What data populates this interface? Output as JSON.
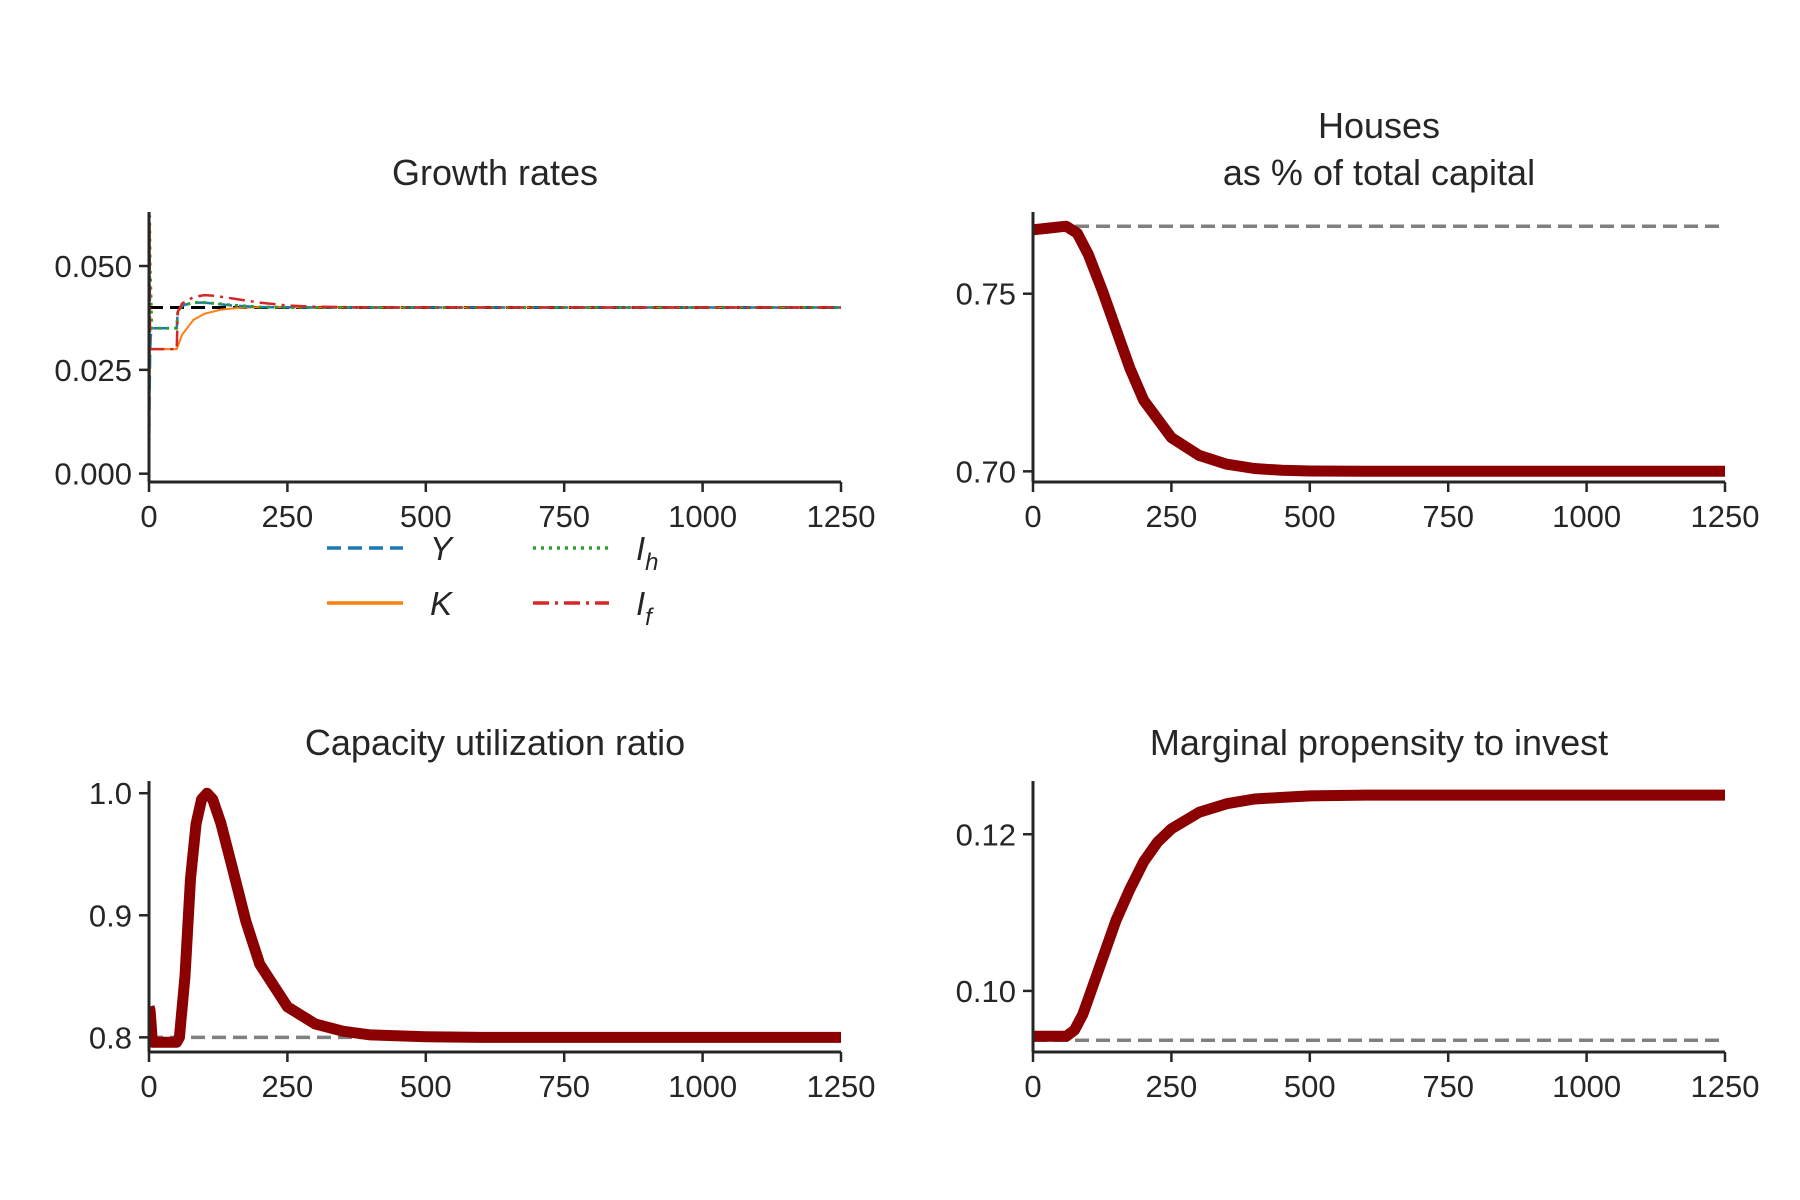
{
  "colors": {
    "background": "#ffffff",
    "axis": "#262626",
    "main_line": "#8b0000",
    "reference_line": "#808080",
    "target_line": "#000000",
    "Y": "#1f77b4",
    "K": "#ff7f0e",
    "Ih": "#2ca02c",
    "If": "#d62728"
  },
  "chart_data": [
    {
      "id": "growth",
      "type": "line",
      "title": "Growth rates",
      "xlabel": "",
      "ylabel": "",
      "xlim": [
        0,
        1250
      ],
      "ylim": [
        -0.002,
        0.063
      ],
      "xticks": [
        0,
        250,
        500,
        750,
        1000,
        1250
      ],
      "yticks": [
        0.0,
        0.025,
        0.05
      ],
      "ytick_labels": [
        "0.000",
        "0.025",
        "0.050"
      ],
      "grid": false,
      "legend": {
        "position": "bottom-center, below axes, 2 columns",
        "entries": [
          {
            "series": "Y",
            "label": "Y",
            "subscript": "",
            "style": "dashed"
          },
          {
            "series": "K",
            "label": "K",
            "subscript": "",
            "style": "solid"
          },
          {
            "series": "Ih",
            "label": "I",
            "subscript": "h",
            "style": "dotted"
          },
          {
            "series": "If",
            "label": "I",
            "subscript": "f",
            "style": "dashdot"
          }
        ]
      },
      "reference_lines": [
        {
          "y": 0.04,
          "style": "dashed",
          "color": "#000000"
        }
      ],
      "series": [
        {
          "name": "K",
          "style": "solid",
          "width": 2,
          "x": [
            0,
            2,
            4,
            50,
            60,
            80,
            100,
            130,
            160,
            200,
            250,
            300,
            400,
            600,
            1250
          ],
          "y": [
            0.0,
            0.03,
            0.03,
            0.03,
            0.0335,
            0.037,
            0.0385,
            0.0395,
            0.0399,
            0.0401,
            0.04005,
            0.04,
            0.04,
            0.04,
            0.04
          ]
        },
        {
          "name": "Y",
          "style": "dashed",
          "width": 2.5,
          "x": [
            0,
            1,
            2,
            3,
            5,
            10,
            30,
            50,
            52,
            60,
            80,
            100,
            150,
            200,
            300,
            1250
          ],
          "y": [
            0.0,
            0.018,
            0.028,
            0.033,
            0.035,
            0.035,
            0.035,
            0.035,
            0.039,
            0.0405,
            0.0412,
            0.0412,
            0.0405,
            0.0401,
            0.04,
            0.04
          ]
        },
        {
          "name": "Ih",
          "style": "dotted",
          "width": 3,
          "x": [
            0,
            1,
            2,
            5,
            50,
            52,
            60,
            80,
            100,
            150,
            200,
            300,
            1250
          ],
          "y": [
            0.0,
            0.062,
            0.05,
            0.035,
            0.035,
            0.039,
            0.0405,
            0.0412,
            0.0412,
            0.0406,
            0.0401,
            0.04,
            0.04
          ]
        },
        {
          "name": "If",
          "style": "dashdot",
          "width": 2.5,
          "x": [
            0,
            1,
            2,
            5,
            50,
            52,
            60,
            80,
            100,
            120,
            150,
            200,
            250,
            300,
            400,
            1250
          ],
          "y": [
            0.0,
            0.06,
            0.03,
            0.03,
            0.03,
            0.039,
            0.041,
            0.0425,
            0.043,
            0.0428,
            0.0422,
            0.0412,
            0.0405,
            0.0402,
            0.04,
            0.04
          ]
        }
      ]
    },
    {
      "id": "houses",
      "type": "line",
      "title": "Houses\nas % of total capital",
      "title_lines": [
        "Houses",
        "as % of total capital"
      ],
      "xlabel": "",
      "ylabel": "",
      "xlim": [
        0,
        1250
      ],
      "ylim": [
        0.697,
        0.773
      ],
      "xticks": [
        0,
        250,
        500,
        750,
        1000,
        1250
      ],
      "yticks": [
        0.7,
        0.75
      ],
      "ytick_labels": [
        "0.70",
        "0.75"
      ],
      "grid": false,
      "reference_lines": [
        {
          "y": 0.769,
          "style": "dashed",
          "color": "#808080"
        }
      ],
      "series": [
        {
          "name": "houses_share",
          "style": "solid",
          "width": 11,
          "x": [
            0,
            30,
            60,
            80,
            100,
            125,
            150,
            175,
            200,
            250,
            300,
            350,
            400,
            450,
            500,
            600,
            800,
            1250
          ],
          "y": [
            0.768,
            0.7685,
            0.769,
            0.767,
            0.761,
            0.751,
            0.74,
            0.729,
            0.72,
            0.7095,
            0.7045,
            0.702,
            0.7008,
            0.7003,
            0.7001,
            0.7,
            0.7,
            0.7
          ]
        }
      ]
    },
    {
      "id": "capacity",
      "type": "line",
      "title": "Capacity utilization ratio",
      "xlabel": "",
      "ylabel": "",
      "xlim": [
        0,
        1250
      ],
      "ylim": [
        0.788,
        1.01
      ],
      "xticks": [
        0,
        250,
        500,
        750,
        1000,
        1250
      ],
      "yticks": [
        0.8,
        0.9,
        1.0
      ],
      "ytick_labels": [
        "0.8",
        "0.9",
        "1.0"
      ],
      "grid": false,
      "reference_lines": [
        {
          "y": 0.8,
          "style": "dashed",
          "color": "#808080"
        }
      ],
      "series": [
        {
          "name": "utilization",
          "style": "solid",
          "width": 11,
          "x": [
            0,
            2,
            4,
            6,
            10,
            50,
            55,
            65,
            75,
            85,
            95,
            105,
            115,
            130,
            150,
            175,
            200,
            250,
            300,
            350,
            400,
            500,
            600,
            1250
          ],
          "y": [
            0.825,
            0.822,
            0.81,
            0.796,
            0.796,
            0.796,
            0.8,
            0.85,
            0.93,
            0.975,
            0.995,
            1.0,
            0.995,
            0.975,
            0.94,
            0.895,
            0.86,
            0.825,
            0.811,
            0.805,
            0.802,
            0.8005,
            0.8,
            0.8
          ]
        }
      ]
    },
    {
      "id": "mpi",
      "type": "line",
      "title": "Marginal propensity to invest",
      "xlabel": "",
      "ylabel": "",
      "xlim": [
        0,
        1250
      ],
      "ylim": [
        0.0922,
        0.1268
      ],
      "xticks": [
        0,
        250,
        500,
        750,
        1000,
        1250
      ],
      "yticks": [
        0.1,
        0.12
      ],
      "ytick_labels": [
        "0.10",
        "0.12"
      ],
      "grid": false,
      "reference_lines": [
        {
          "y": 0.0937,
          "style": "dashed",
          "color": "#808080"
        }
      ],
      "series": [
        {
          "name": "propensity",
          "style": "solid",
          "width": 11,
          "x": [
            0,
            30,
            60,
            75,
            90,
            100,
            125,
            150,
            175,
            200,
            225,
            250,
            300,
            350,
            400,
            450,
            500,
            600,
            800,
            1250
          ],
          "y": [
            0.0942,
            0.0942,
            0.0942,
            0.095,
            0.097,
            0.099,
            0.104,
            0.109,
            0.113,
            0.1165,
            0.119,
            0.1207,
            0.1228,
            0.1239,
            0.1245,
            0.1247,
            0.1249,
            0.125,
            0.125,
            0.125
          ]
        }
      ]
    }
  ]
}
